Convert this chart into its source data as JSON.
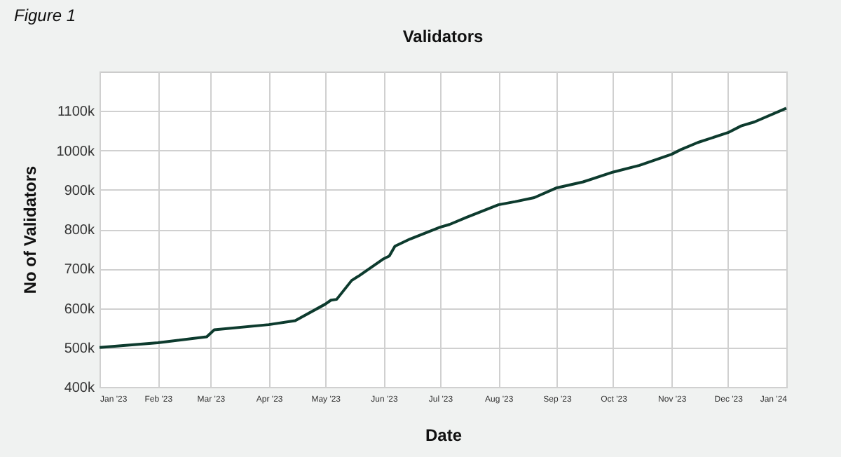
{
  "chart_data": {
    "type": "line",
    "title": "Validators",
    "xlabel": "Date",
    "ylabel": "No of Validators",
    "annotations": [
      "Figure 1"
    ],
    "x": [
      "2023-01-01",
      "2023-02-01",
      "2023-02-27",
      "2023-03-03",
      "2023-04-01",
      "2023-04-15",
      "2023-05-01",
      "2023-05-04",
      "2023-05-07",
      "2023-05-15",
      "2023-05-19",
      "2023-06-01",
      "2023-06-04",
      "2023-06-07",
      "2023-06-15",
      "2023-07-01",
      "2023-07-06",
      "2023-07-15",
      "2023-08-01",
      "2023-08-10",
      "2023-08-20",
      "2023-09-01",
      "2023-09-15",
      "2023-10-01",
      "2023-10-15",
      "2023-11-01",
      "2023-11-06",
      "2023-11-15",
      "2023-12-01",
      "2023-12-08",
      "2023-12-15",
      "2024-01-01"
    ],
    "series": [
      {
        "color": "#0d3b2e",
        "values": [
          500000,
          512000,
          527000,
          545000,
          558000,
          568000,
          610000,
          620000,
          622000,
          670000,
          682000,
          725000,
          732000,
          757000,
          775000,
          805000,
          812000,
          830000,
          862000,
          870000,
          880000,
          905000,
          920000,
          945000,
          962000,
          990000,
          1002000,
          1020000,
          1045000,
          1062000,
          1072000,
          1107000
        ]
      }
    ],
    "xlim": [
      "2023-01-01",
      "2024-01-01"
    ],
    "xticks": [
      {
        "value": "2023-01-01",
        "label": "Jan '23"
      },
      {
        "value": "2023-02-01",
        "label": "Feb '23"
      },
      {
        "value": "2023-03-01",
        "label": "Mar '23"
      },
      {
        "value": "2023-04-01",
        "label": "Apr '23"
      },
      {
        "value": "2023-05-01",
        "label": "May '23"
      },
      {
        "value": "2023-06-01",
        "label": "Jun '23"
      },
      {
        "value": "2023-07-01",
        "label": "Jul '23"
      },
      {
        "value": "2023-08-01",
        "label": "Aug '23"
      },
      {
        "value": "2023-09-01",
        "label": "Sep '23"
      },
      {
        "value": "2023-10-01",
        "label": "Oct '23"
      },
      {
        "value": "2023-11-01",
        "label": "Nov '23"
      },
      {
        "value": "2023-12-01",
        "label": "Dec '23"
      },
      {
        "value": "2024-01-01",
        "label": "Jan '24"
      }
    ],
    "ylim": [
      400000,
      1200000
    ],
    "yticks": [
      {
        "value": 400000,
        "label": "400k"
      },
      {
        "value": 500000,
        "label": "500k"
      },
      {
        "value": 600000,
        "label": "600k"
      },
      {
        "value": 700000,
        "label": "700k"
      },
      {
        "value": 800000,
        "label": "800k"
      },
      {
        "value": 900000,
        "label": "900k"
      },
      {
        "value": 1000000,
        "label": "1000k"
      },
      {
        "value": 1100000,
        "label": "1100k"
      }
    ],
    "grid": true,
    "line_style": "solid",
    "marker": "none"
  }
}
